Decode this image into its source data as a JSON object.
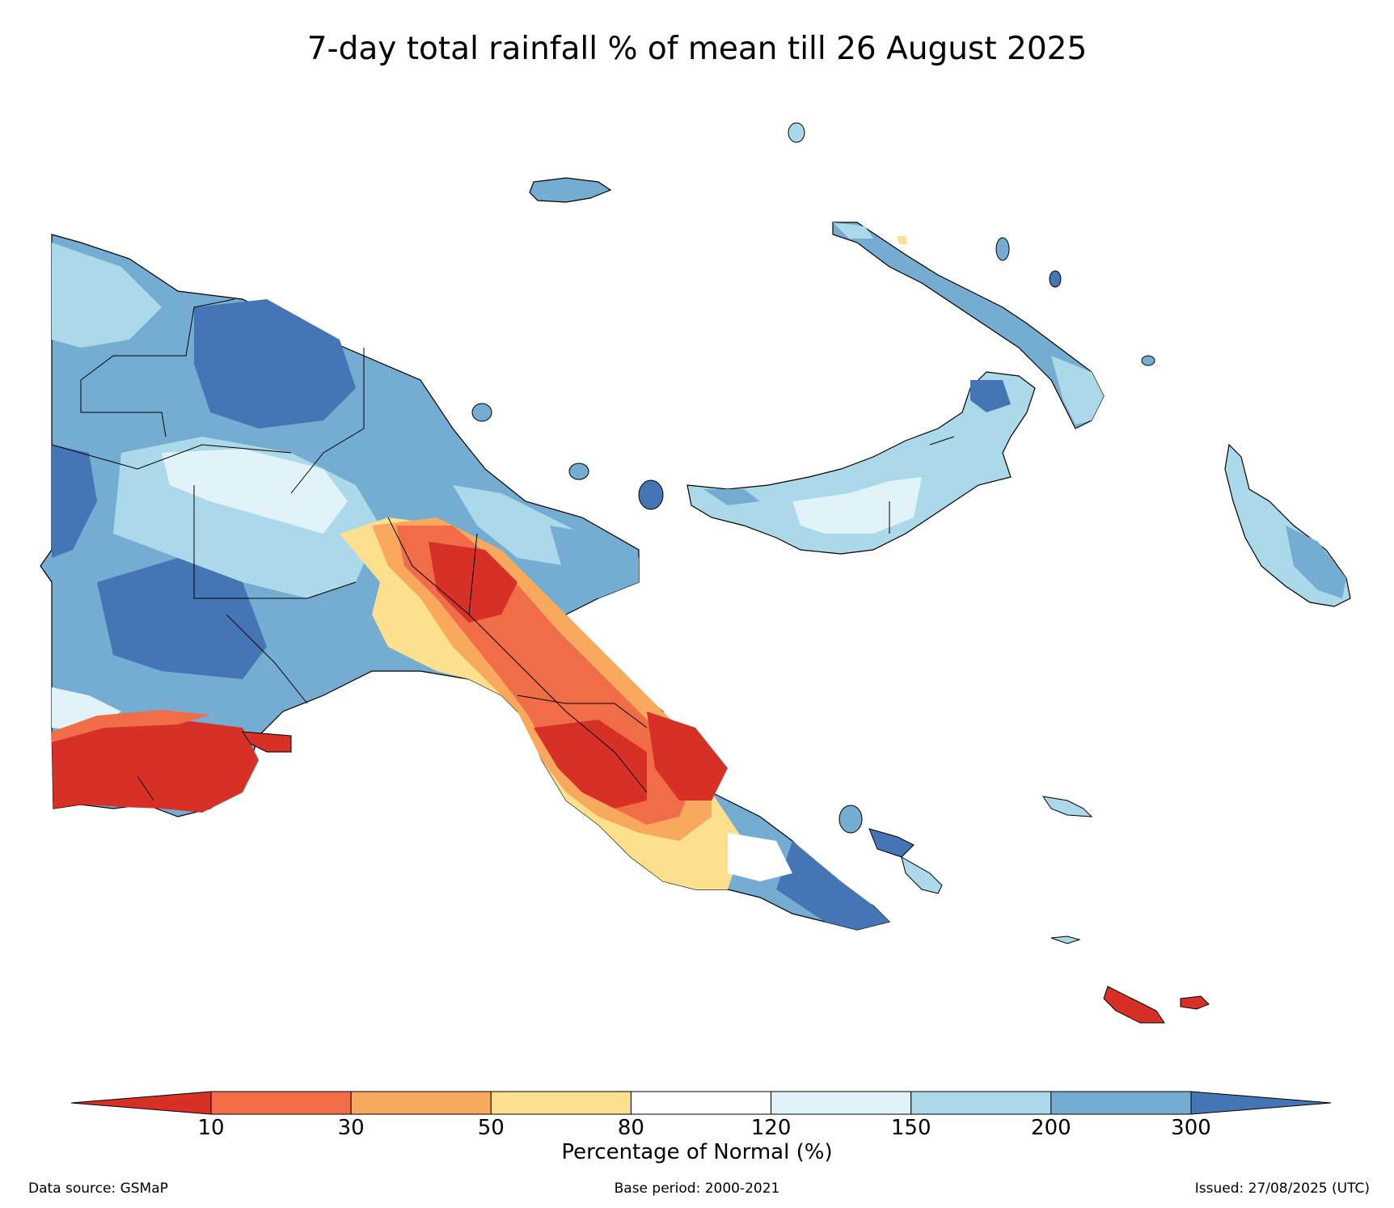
{
  "title": "7-day total rainfall % of mean till 26 August 2025",
  "colorbar": {
    "label": "Percentage of Normal (%)",
    "ticks": [
      "10",
      "30",
      "50",
      "80",
      "120",
      "150",
      "200",
      "300"
    ],
    "bins": [
      {
        "range": "<10",
        "color": "#d73027"
      },
      {
        "range": "10-30",
        "color": "#f16d47"
      },
      {
        "range": "30-50",
        "color": "#f9a95e"
      },
      {
        "range": "50-80",
        "color": "#fde08e"
      },
      {
        "range": "80-120",
        "color": "#ffffff"
      },
      {
        "range": "120-150",
        "color": "#e1f3f8"
      },
      {
        "range": "150-200",
        "color": "#abd9e9"
      },
      {
        "range": "200-300",
        "color": "#74add1"
      },
      {
        "range": ">300",
        "color": "#4575b4"
      }
    ]
  },
  "footer": {
    "source": "Data source: GSMaP",
    "base": "Base period: 2000-2021",
    "issued": "Issued: 27/08/2025 (UTC)"
  }
}
